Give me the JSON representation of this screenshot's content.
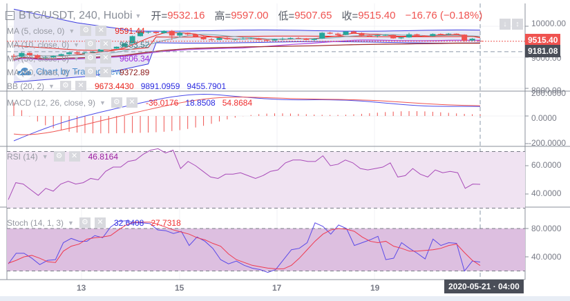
{
  "header": {
    "symbol": "BTC/USDT, 240, Huobi",
    "open_label": "开=",
    "open": "9532.16",
    "high_label": "高=",
    "high": "9597.00",
    "low_label": "低=",
    "low": "9507.65",
    "close_label": "收=",
    "close": "9515.40",
    "change": "−16.76 (−0.18%)"
  },
  "indicators": {
    "ma5": {
      "name": "MA (5, close, 0)",
      "value": "9591.44",
      "color": "#e8231b"
    },
    "ma10": {
      "name": "MA (10, close, 0)",
      "value": "9653.52",
      "color": "#4a7d82"
    },
    "ma30": {
      "name": "MA (30, close, 0)",
      "value": "9606.34",
      "color": "#9c27e0"
    },
    "ma60": {
      "name": "MA (60, close, 0)",
      "value": "9372.89",
      "color": "#8b1a1a"
    },
    "bb": {
      "name": "BB (20, 2)",
      "basis": "9673.4430",
      "upper": "9891.0959",
      "lower": "9455.7901",
      "basis_color": "#e8231b",
      "band_color": "#2a2ae0"
    },
    "macd": {
      "name": "MACD (12, 26, close, 9)",
      "hist": "-36.0176",
      "macd": "18.8508",
      "signal": "54.8684"
    },
    "rsi": {
      "name": "RSI (14)",
      "value": "46.8164"
    },
    "stoch": {
      "name": "Stoch (14, 1, 3)",
      "k": "32.6408",
      "d": "27.7318"
    }
  },
  "watermark": "Chart by TradingView",
  "price_axis": {
    "labels": [
      "10000.00",
      "9000.00",
      "8000.00"
    ],
    "last_price": "9515.40",
    "last_price_color": "#ef5350",
    "crosshair_price": "9181.08",
    "crosshair_color": "#4a4e58"
  },
  "macd_axis": {
    "labels": [
      "200.0000",
      "0.0000",
      "-200.0000"
    ]
  },
  "rsi_axis": {
    "labels": [
      "60.0000",
      "40.0000"
    ]
  },
  "stoch_axis": {
    "labels": [
      "80.0000",
      "40.0000"
    ]
  },
  "time_axis": {
    "labels": [
      "13",
      "15",
      "17",
      "19"
    ],
    "crosshair_time": "2020-05-21 · 04:00"
  },
  "colors": {
    "up": "#26a69a",
    "down": "#ef5350",
    "bb_fill": "#e3e3f2",
    "rsi_fill": "#f0e3f2",
    "stoch_fill": "#ddbfe0"
  },
  "chart_data": {
    "type": "candlestick",
    "title": "BTC/USDT, 240, Huobi",
    "timeframe": "240",
    "last_bar": {
      "open": 9532.16,
      "high": 9597.0,
      "low": 9507.65,
      "close": 9515.4,
      "change": -16.76,
      "change_pct": -0.18
    },
    "x_ticks": [
      "13",
      "15",
      "17",
      "19"
    ],
    "x_crosshair": "2020-05-21 04:00",
    "y_ticks": [
      10000,
      9000,
      8000
    ],
    "candles": [
      [
        9050,
        9110,
        8900,
        9020
      ],
      [
        9020,
        9160,
        9000,
        9140
      ],
      [
        9140,
        9160,
        9020,
        9070
      ],
      [
        9070,
        9100,
        8950,
        8980
      ],
      [
        8980,
        9050,
        8940,
        9000
      ],
      [
        9000,
        9060,
        8980,
        9050
      ],
      [
        9050,
        9120,
        9030,
        9100
      ],
      [
        9100,
        9180,
        9080,
        9160
      ],
      [
        9160,
        9200,
        9100,
        9120
      ],
      [
        9120,
        9180,
        9100,
        9150
      ],
      [
        9150,
        9200,
        9130,
        9180
      ],
      [
        9180,
        9300,
        9160,
        9260
      ],
      [
        9260,
        9290,
        9240,
        9280
      ],
      [
        9280,
        9350,
        9270,
        9340
      ],
      [
        9340,
        9460,
        9330,
        9450
      ],
      [
        9450,
        9700,
        9440,
        9680
      ],
      [
        9680,
        9900,
        9670,
        9800
      ],
      [
        9800,
        9840,
        9760,
        9820
      ],
      [
        9820,
        9830,
        9740,
        9780
      ],
      [
        9780,
        9870,
        9760,
        9850
      ],
      [
        9850,
        9880,
        9560,
        9700
      ],
      [
        9700,
        9820,
        9640,
        9790
      ],
      [
        9790,
        9800,
        9700,
        9740
      ],
      [
        9740,
        9760,
        9640,
        9660
      ],
      [
        9660,
        9680,
        9560,
        9580
      ],
      [
        9580,
        9620,
        9540,
        9560
      ],
      [
        9560,
        9640,
        9550,
        9620
      ],
      [
        9620,
        9650,
        9560,
        9580
      ],
      [
        9580,
        9600,
        9540,
        9590
      ],
      [
        9590,
        9650,
        9570,
        9600
      ],
      [
        9600,
        9640,
        9580,
        9610
      ],
      [
        9610,
        9630,
        9550,
        9560
      ],
      [
        9560,
        9580,
        9520,
        9540
      ],
      [
        9540,
        9600,
        9530,
        9590
      ],
      [
        9590,
        9640,
        9540,
        9600
      ],
      [
        9600,
        9640,
        9580,
        9620
      ],
      [
        9620,
        9650,
        9590,
        9610
      ],
      [
        9610,
        9620,
        9550,
        9560
      ],
      [
        9560,
        9620,
        9530,
        9600
      ],
      [
        9600,
        9810,
        9590,
        9790
      ],
      [
        9790,
        9820,
        9740,
        9760
      ],
      [
        9760,
        9790,
        9690,
        9720
      ],
      [
        9720,
        9850,
        9710,
        9830
      ],
      [
        9830,
        9860,
        9760,
        9780
      ],
      [
        9780,
        9800,
        9660,
        9700
      ],
      [
        9700,
        9720,
        9660,
        9690
      ],
      [
        9690,
        9720,
        9640,
        9710
      ],
      [
        9710,
        9740,
        9690,
        9720
      ],
      [
        9720,
        9730,
        9600,
        9610
      ],
      [
        9610,
        9650,
        9590,
        9640
      ],
      [
        9640,
        9790,
        9630,
        9740
      ],
      [
        9740,
        9760,
        9680,
        9700
      ],
      [
        9700,
        9710,
        9650,
        9680
      ],
      [
        9680,
        9770,
        9670,
        9750
      ],
      [
        9750,
        9770,
        9720,
        9740
      ],
      [
        9740,
        9780,
        9710,
        9760
      ],
      [
        9760,
        9770,
        9710,
        9730
      ],
      [
        9730,
        9740,
        9500,
        9540
      ],
      [
        9540,
        9620,
        9520,
        9600
      ],
      [
        9532,
        9597,
        9508,
        9515
      ]
    ],
    "macd": {
      "hist": -36.0176,
      "macd": 18.8508,
      "signal": 54.8684,
      "ylim": [
        -200,
        200
      ]
    },
    "rsi": {
      "value": 46.8164,
      "upper_band": 70,
      "lower_band": 30,
      "series": [
        36,
        48,
        47,
        43,
        39,
        44,
        42,
        47,
        49,
        47,
        48,
        51,
        50,
        56,
        59,
        59,
        63,
        64,
        68,
        71,
        72,
        69,
        71,
        58,
        63,
        60,
        56,
        52,
        51,
        54,
        54,
        55,
        53,
        51,
        53,
        56,
        57,
        62,
        64,
        64,
        63,
        63,
        67,
        60,
        61,
        64,
        62,
        58,
        57,
        58,
        59,
        62,
        52,
        53,
        58,
        54,
        52,
        57,
        55,
        56,
        55,
        44,
        47,
        46.8
      ]
    },
    "stoch": {
      "k": 32.6408,
      "d": 27.7318,
      "upper_band": 80,
      "lower_band": 20,
      "k_series": [
        30,
        45,
        45,
        38,
        29,
        35,
        36,
        60,
        66,
        62,
        62,
        70,
        67,
        82,
        90,
        91,
        88,
        88,
        87,
        78,
        77,
        73,
        76,
        56,
        68,
        62,
        52,
        36,
        30,
        34,
        28,
        24,
        22,
        18,
        22,
        36,
        50,
        52,
        60,
        88,
        83,
        72,
        85,
        80,
        56,
        60,
        64,
        69,
        36,
        38,
        60,
        52,
        45,
        37,
        65,
        56,
        60,
        59,
        20,
        34,
        32.6
      ],
      "d_series": [
        31,
        35,
        40,
        42,
        38,
        33,
        32,
        48,
        55,
        58,
        65,
        67,
        68,
        70,
        78,
        85,
        89,
        89,
        89,
        86,
        82,
        78,
        75,
        72,
        67,
        64,
        59,
        55,
        44,
        36,
        32,
        28,
        26,
        24,
        23,
        23,
        28,
        38,
        50,
        62,
        72,
        78,
        80,
        79,
        76,
        68,
        62,
        60,
        62,
        55,
        52,
        48,
        48,
        49,
        50,
        52,
        56,
        58,
        46,
        35,
        27.7
      ]
    }
  }
}
